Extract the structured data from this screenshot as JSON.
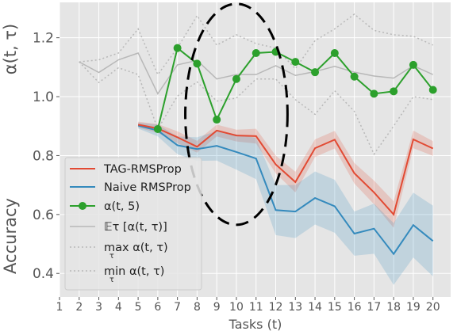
{
  "chart_data": {
    "type": "line",
    "xlabel": "Tasks (t)",
    "ylabel_top": "α(t, τ)",
    "ylabel_bottom": "Accuracy",
    "x_ticks": [
      1,
      2,
      3,
      4,
      5,
      6,
      7,
      8,
      9,
      10,
      11,
      12,
      13,
      14,
      15,
      16,
      17,
      18,
      19,
      20
    ],
    "y_ticks": [
      0.4,
      0.6,
      0.8,
      1.0,
      1.2
    ],
    "y_tick_labels": [
      "0.4",
      "0.6",
      "0.8",
      "1.0",
      "1.2"
    ],
    "xlim": [
      1,
      20.9
    ],
    "ylim": [
      0.32,
      1.32
    ],
    "grid": true,
    "legend_position": "lower-left",
    "legend": [
      {
        "label": "TAG-RMSProp",
        "color": "#e24a33",
        "style": "line"
      },
      {
        "label": "Naive RMSProp",
        "color": "#348abd",
        "style": "line"
      },
      {
        "label": "α(t, 5)",
        "color": "#2ca02c",
        "style": "line-marker"
      },
      {
        "label": "𝔼τ  [α(t, τ)]",
        "color": "#b8b8b8",
        "style": "line"
      },
      {
        "label": "max α(t, τ)",
        "sub": "τ",
        "color": "#b8b8b8",
        "style": "dotted"
      },
      {
        "label": "min α(t, τ)",
        "sub": "τ",
        "color": "#b8b8b8",
        "style": "dotted"
      }
    ],
    "series": [
      {
        "name": "TAG-RMSProp",
        "color": "#e24a33",
        "x": [
          5,
          6,
          7,
          8,
          9,
          10,
          11,
          12,
          13,
          14,
          15,
          16,
          17,
          18,
          19,
          20
        ],
        "y": [
          0.905,
          0.892,
          0.862,
          0.83,
          0.885,
          0.868,
          0.866,
          0.77,
          0.71,
          0.825,
          0.854,
          0.74,
          0.675,
          0.6,
          0.855,
          0.824
        ],
        "band_half_width": [
          0.01,
          0.015,
          0.02,
          0.02,
          0.02,
          0.02,
          0.025,
          0.03,
          0.035,
          0.03,
          0.03,
          0.035,
          0.04,
          0.045,
          0.03,
          0.025
        ]
      },
      {
        "name": "Naive RMSProp",
        "color": "#348abd",
        "x": [
          5,
          6,
          7,
          8,
          9,
          10,
          11,
          12,
          13,
          14,
          15,
          16,
          17,
          18,
          19,
          20
        ],
        "y": [
          0.902,
          0.885,
          0.835,
          0.822,
          0.833,
          0.812,
          0.79,
          0.615,
          0.61,
          0.656,
          0.628,
          0.535,
          0.552,
          0.466,
          0.564,
          0.51
        ],
        "band_half_width": [
          0.01,
          0.02,
          0.03,
          0.04,
          0.05,
          0.06,
          0.07,
          0.085,
          0.09,
          0.09,
          0.09,
          0.075,
          0.085,
          0.105,
          0.11,
          0.12
        ]
      },
      {
        "name": "α(t, 5)",
        "color": "#2ca02c",
        "x": [
          6,
          7,
          8,
          9,
          10,
          11,
          12,
          13,
          14,
          15,
          16,
          17,
          18,
          19,
          20
        ],
        "y": [
          0.89,
          1.165,
          1.112,
          0.922,
          1.06,
          1.148,
          1.152,
          1.118,
          1.083,
          1.148,
          1.068,
          1.01,
          1.018,
          1.108,
          1.023
        ]
      },
      {
        "name": "𝔼τ [α(t, τ)]",
        "color": "#b8b8b8",
        "x": [
          2,
          3,
          4,
          5,
          6,
          7,
          8,
          9,
          10,
          11,
          12,
          13,
          14,
          15,
          16,
          17,
          18,
          19,
          20
        ],
        "y": [
          1.118,
          1.082,
          1.125,
          1.148,
          1.01,
          1.108,
          1.123,
          1.06,
          1.075,
          1.075,
          1.105,
          1.072,
          1.085,
          1.103,
          1.083,
          1.07,
          1.063,
          1.105,
          1.075
        ]
      },
      {
        "name": "max α(t, τ)",
        "color": "#b8b8b8",
        "dash": "dotted",
        "x": [
          2,
          3,
          4,
          5,
          6,
          7,
          8,
          9,
          10,
          11,
          12,
          13,
          14,
          15,
          16,
          17,
          18,
          19,
          20
        ],
        "y": [
          1.118,
          1.125,
          1.148,
          1.23,
          1.075,
          1.165,
          1.275,
          1.175,
          1.21,
          1.18,
          1.165,
          1.095,
          1.19,
          1.23,
          1.28,
          1.225,
          1.21,
          1.205,
          1.175
        ]
      },
      {
        "name": "min α(t, τ)",
        "color": "#b8b8b8",
        "dash": "dotted",
        "x": [
          2,
          3,
          4,
          5,
          6,
          7,
          8,
          9,
          10,
          11,
          12,
          13,
          14,
          15,
          16,
          17,
          18,
          19,
          20
        ],
        "y": [
          1.118,
          1.048,
          1.098,
          1.075,
          0.89,
          1.002,
          1.05,
          0.985,
          0.995,
          1.06,
          1.06,
          0.99,
          0.94,
          1.02,
          0.95,
          0.805,
          0.9,
          1.0,
          0.99
        ]
      }
    ],
    "annotation": {
      "type": "dashed-ellipse",
      "color": "#000000",
      "center_x": 10.0,
      "center_y": 0.94,
      "radius_x": 2.6,
      "radius_y": 0.375
    }
  }
}
